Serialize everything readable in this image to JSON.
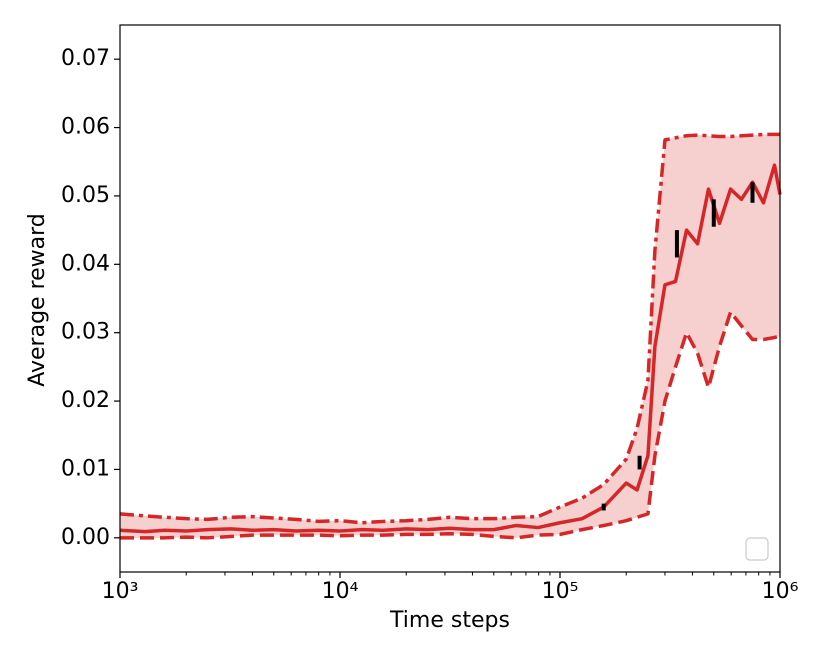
{
  "chart_data": {
    "type": "line",
    "xlabel": "Time steps",
    "ylabel": "Average reward",
    "xscale": "log",
    "x": [
      1000,
      1300,
      1600,
      2000,
      2500,
      3200,
      4000,
      5000,
      6300,
      8000,
      10000,
      12600,
      15800,
      20000,
      25100,
      31600,
      39800,
      50100,
      63100,
      79400,
      100000,
      126000,
      158000,
      200000,
      224000,
      251000,
      270000,
      300000,
      335000,
      376000,
      422000,
      473000,
      531000,
      596000,
      668000,
      750000,
      841000,
      944000,
      1000000
    ],
    "series": [
      {
        "color": "#d62728",
        "linestyle": "solid",
        "values": [
          0.0011,
          0.0009,
          0.0011,
          0.001,
          0.0012,
          0.0013,
          0.0011,
          0.0012,
          0.001,
          0.0011,
          0.001,
          0.0012,
          0.0011,
          0.0013,
          0.0012,
          0.0014,
          0.0012,
          0.0012,
          0.0018,
          0.0015,
          0.0022,
          0.0028,
          0.0045,
          0.008,
          0.007,
          0.012,
          0.028,
          0.037,
          0.0375,
          0.045,
          0.043,
          0.051,
          0.046,
          0.051,
          0.0495,
          0.052,
          0.049,
          0.0545,
          0.0502
        ]
      },
      {
        "color": "#d62728",
        "linestyle": "dashdot",
        "values": [
          0.0035,
          0.0032,
          0.003,
          0.0028,
          0.0027,
          0.003,
          0.0031,
          0.0029,
          0.0027,
          0.0024,
          0.0025,
          0.0022,
          0.0024,
          0.0025,
          0.0027,
          0.003,
          0.0028,
          0.0028,
          0.003,
          0.0031,
          0.0045,
          0.0058,
          0.0078,
          0.0115,
          0.016,
          0.023,
          0.042,
          0.0582,
          0.0585,
          0.0588,
          0.0589,
          0.0588,
          0.0587,
          0.0587,
          0.0588,
          0.0589,
          0.059,
          0.059,
          0.059
        ]
      },
      {
        "color": "#d62728",
        "linestyle": "dashed",
        "values": [
          0,
          0,
          0,
          0.0001,
          0,
          0.0002,
          0.0004,
          0.0004,
          0.0004,
          0.0004,
          0.0003,
          0.0004,
          0.0004,
          0.0005,
          0.0005,
          0.0006,
          0.0005,
          0.0002,
          0,
          0.0004,
          0.0005,
          0.0012,
          0.0018,
          0.0025,
          0.003,
          0.0035,
          0.012,
          0.02,
          0.025,
          0.03,
          0.027,
          0.022,
          0.028,
          0.033,
          0.031,
          0.029,
          0.029,
          0.0293,
          0.0295
        ]
      }
    ],
    "band_color": "#f6cfcf",
    "error_bars": {
      "color": "#000000",
      "x": [
        158000,
        230000,
        340000,
        500000,
        750000
      ],
      "values": [
        0.0045,
        0.011,
        0.043,
        0.0475,
        0.0505
      ],
      "errors": [
        0.0005,
        0.001,
        0.002,
        0.002,
        0.0015
      ]
    },
    "xlim": [
      1000,
      1000000
    ],
    "xticks": [
      {
        "value": 1000,
        "label": "10³"
      },
      {
        "value": 10000,
        "label": "10⁴"
      },
      {
        "value": 100000,
        "label": "10⁵"
      },
      {
        "value": 1000000,
        "label": "10⁶"
      }
    ],
    "ylim": [
      -0.005,
      0.075
    ],
    "yticks": [
      {
        "value": 0,
        "label": "0.00"
      },
      {
        "value": 0.01,
        "label": "0.01"
      },
      {
        "value": 0.02,
        "label": "0.02"
      },
      {
        "value": 0.03,
        "label": "0.03"
      },
      {
        "value": 0.04,
        "label": "0.04"
      },
      {
        "value": 0.05,
        "label": "0.05"
      },
      {
        "value": 0.06,
        "label": "0.06"
      },
      {
        "value": 0.07,
        "label": "0.07"
      }
    ],
    "legend": "lower right"
  }
}
